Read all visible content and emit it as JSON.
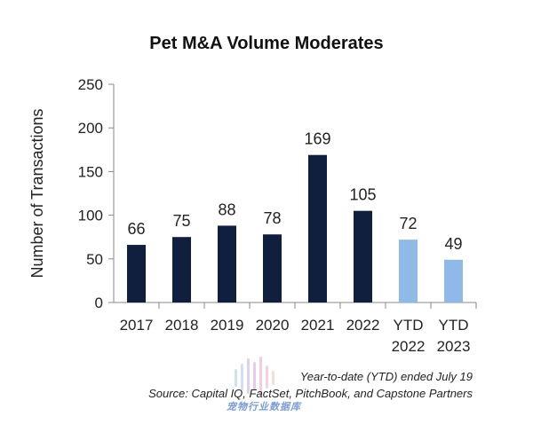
{
  "chart_data": {
    "type": "bar",
    "title": "Pet M&A Volume Moderates",
    "ylabel": "Number of Transactions",
    "xlabel": "",
    "ylim": [
      0,
      250
    ],
    "yticks": [
      0,
      50,
      100,
      150,
      200,
      250
    ],
    "categories": [
      [
        "2017"
      ],
      [
        "2018"
      ],
      [
        "2019"
      ],
      [
        "2020"
      ],
      [
        "2021"
      ],
      [
        "2022"
      ],
      [
        "YTD",
        "2022"
      ],
      [
        "YTD",
        "2023"
      ]
    ],
    "values": [
      66,
      75,
      88,
      78,
      169,
      105,
      72,
      49
    ],
    "bar_colors": [
      "#0f1f3d",
      "#0f1f3d",
      "#0f1f3d",
      "#0f1f3d",
      "#0f1f3d",
      "#0f1f3d",
      "#8fb9e6",
      "#8fb9e6"
    ],
    "grid": false
  },
  "footnotes": {
    "ytd_note": "Year-to-date (YTD) ended July 19",
    "source": "Source: Capital IQ, FactSet, PitchBook, and Capstone Partners"
  },
  "watermark": {
    "text": "宠物行业数据库"
  }
}
